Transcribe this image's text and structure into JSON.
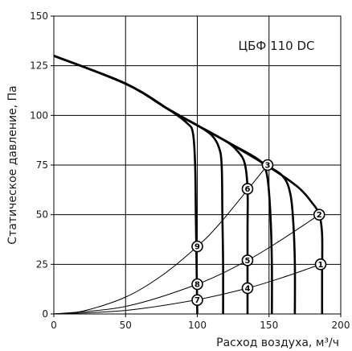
{
  "chart_data": {
    "type": "line",
    "title": "ЦБФ 110 DC",
    "xlabel": "Расход воздуха, м³/ч",
    "ylabel": "Статическое давление, Па",
    "xlim": [
      0,
      200
    ],
    "ylim": [
      0,
      150
    ],
    "xticks": [
      0,
      50,
      100,
      150,
      200
    ],
    "yticks": [
      0,
      25,
      50,
      75,
      100,
      125,
      150
    ],
    "grid": true,
    "fan_curves": [
      {
        "points": [
          [
            0,
            130
          ],
          [
            50,
            116
          ],
          [
            80,
            103
          ],
          [
            93,
            96
          ],
          [
            97,
            91
          ],
          [
            98.5,
            75
          ],
          [
            99,
            50
          ],
          [
            99.5,
            25
          ],
          [
            100,
            0
          ]
        ]
      },
      {
        "points": [
          [
            0,
            130
          ],
          [
            50,
            116
          ],
          [
            80,
            103
          ],
          [
            100,
            95
          ],
          [
            110,
            90
          ],
          [
            115,
            84
          ],
          [
            117,
            75
          ],
          [
            117.5,
            50
          ],
          [
            118,
            25
          ],
          [
            118,
            0
          ]
        ]
      },
      {
        "points": [
          [
            0,
            130
          ],
          [
            50,
            116
          ],
          [
            80,
            103
          ],
          [
            100,
            95
          ],
          [
            120,
            87
          ],
          [
            128,
            82
          ],
          [
            133,
            76
          ],
          [
            135,
            63
          ],
          [
            135,
            40
          ],
          [
            135,
            0
          ]
        ]
      },
      {
        "points": [
          [
            0,
            130
          ],
          [
            50,
            116
          ],
          [
            80,
            103
          ],
          [
            100,
            95
          ],
          [
            120,
            87
          ],
          [
            140,
            79
          ],
          [
            146,
            75
          ],
          [
            149,
            68
          ],
          [
            151,
            50
          ],
          [
            152,
            25
          ],
          [
            152,
            0
          ]
        ]
      },
      {
        "points": [
          [
            0,
            130
          ],
          [
            50,
            116
          ],
          [
            80,
            103
          ],
          [
            100,
            95
          ],
          [
            120,
            87
          ],
          [
            148,
            75
          ],
          [
            160,
            69
          ],
          [
            165,
            60
          ],
          [
            167,
            45
          ],
          [
            168,
            25
          ],
          [
            168,
            0
          ]
        ]
      },
      {
        "points": [
          [
            0,
            130
          ],
          [
            50,
            116
          ],
          [
            80,
            103
          ],
          [
            100,
            95
          ],
          [
            120,
            87
          ],
          [
            148,
            75
          ],
          [
            170,
            64
          ],
          [
            180,
            56
          ],
          [
            185,
            50
          ],
          [
            187,
            40
          ],
          [
            187,
            20
          ],
          [
            187,
            0
          ]
        ]
      }
    ],
    "system_curves": [
      {
        "points": [
          [
            0,
            0
          ],
          [
            20,
            1.4
          ],
          [
            50,
            8.5
          ],
          [
            75,
            19.2
          ],
          [
            100,
            34
          ],
          [
            115,
            45
          ],
          [
            135,
            62.5
          ],
          [
            149,
            75
          ]
        ]
      },
      {
        "points": [
          [
            0,
            0
          ],
          [
            50,
            3.8
          ],
          [
            100,
            15
          ],
          [
            135,
            27
          ],
          [
            160,
            38
          ],
          [
            185,
            50
          ]
        ]
      },
      {
        "points": [
          [
            0,
            0
          ],
          [
            50,
            1.8
          ],
          [
            100,
            7.2
          ],
          [
            135,
            13
          ],
          [
            160,
            18.5
          ],
          [
            186,
            25
          ]
        ]
      }
    ],
    "markers": [
      {
        "label": "1",
        "x": 186,
        "y": 25
      },
      {
        "label": "2",
        "x": 185,
        "y": 50
      },
      {
        "label": "3",
        "x": 149,
        "y": 75
      },
      {
        "label": "4",
        "x": 135,
        "y": 13
      },
      {
        "label": "5",
        "x": 135,
        "y": 27
      },
      {
        "label": "6",
        "x": 135,
        "y": 63
      },
      {
        "label": "7",
        "x": 100,
        "y": 7
      },
      {
        "label": "8",
        "x": 100,
        "y": 15
      },
      {
        "label": "9",
        "x": 100,
        "y": 34
      }
    ]
  }
}
